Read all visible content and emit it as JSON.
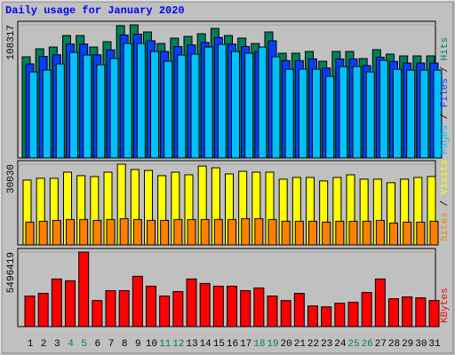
{
  "chart_data": {
    "type": "bar",
    "title": "Daily usage for January 2020",
    "categories": [
      "1",
      "2",
      "3",
      "4",
      "5",
      "6",
      "7",
      "8",
      "9",
      "10",
      "11",
      "12",
      "13",
      "14",
      "15",
      "16",
      "17",
      "18",
      "19",
      "20",
      "21",
      "22",
      "23",
      "24",
      "25",
      "26",
      "27",
      "28",
      "29",
      "30",
      "31"
    ],
    "category_colors": [
      "#000000",
      "#000000",
      "#000000",
      "#00805c",
      "#00805c",
      "#000000",
      "#000000",
      "#000000",
      "#000000",
      "#000000",
      "#00805c",
      "#00805c",
      "#000000",
      "#000000",
      "#000000",
      "#000000",
      "#000000",
      "#00805c",
      "#00805c",
      "#000000",
      "#000000",
      "#000000",
      "#000000",
      "#000000",
      "#00805c",
      "#00805c",
      "#000000",
      "#000000",
      "#000000",
      "#000000",
      "#000000"
    ],
    "legend_separator": " / ",
    "panels": [
      {
        "ylim": [
          0,
          108317
        ],
        "yticks": [
          108317
        ],
        "series": [
          {
            "name": "Hits",
            "color": "#00805c",
            "values": [
              82320,
              88820,
              90265,
              99650,
              99650,
              90265,
              94600,
              107600,
              108317,
              102540,
              93150,
              97480,
              98930,
              101095,
              105430,
              99650,
              97480,
              93150,
              102540,
              85210,
              85210,
              86650,
              78710,
              86650,
              86650,
              80875,
              88100,
              84490,
              83040,
              83040,
              83040
            ]
          },
          {
            "name": "Files",
            "color": "#0040ff",
            "values": [
              76558,
              82603,
              83946,
              92675,
              92675,
              83946,
              87978,
              100068,
              100735,
              95362,
              86630,
              90656,
              92005,
              94018,
              98050,
              92675,
              90656,
              86630,
              95362,
              79245,
              79245,
              80585,
              73200,
              80585,
              80585,
              75214,
              81933,
              78576,
              77227,
              77227,
              77227
            ]
          },
          {
            "name": "Pages",
            "color": "#00c0ff",
            "values": [
              70040,
              71490,
              76540,
              85930,
              83760,
              75820,
              80875,
              93150,
              93150,
              86650,
              78710,
              83760,
              84490,
              90265,
              92430,
              86650,
              85210,
              90265,
              82320,
              72210,
              72210,
              72210,
              66430,
              74380,
              74380,
              70040,
              79430,
              72210,
              71490,
              71490,
              71490
            ]
          }
        ]
      },
      {
        "ylim": [
          0,
          30030
        ],
        "yticks": [
          30030
        ],
        "series": [
          {
            "name": "Visits",
            "color": "#ffff00",
            "values": [
              24124,
              24776,
              24776,
              27058,
              25754,
              25428,
              27058,
              30030,
              28036,
              27710,
              25754,
              27058,
              26080,
              29340,
              28688,
              26406,
              27384,
              27058,
              27058,
              24450,
              25102,
              25102,
              23798,
              25102,
              26080,
              24450,
              24450,
              23146,
              24450,
              25102,
              25428
            ]
          },
          {
            "name": "Sites",
            "color": "#ff8000",
            "values": [
              8476,
              8802,
              9128,
              9454,
              9454,
              9128,
              9454,
              9780,
              9454,
              9128,
              9128,
              9454,
              9454,
              9454,
              9454,
              9454,
              9780,
              9780,
              9454,
              8802,
              8802,
              8802,
              8476,
              8802,
              8802,
              8802,
              9128,
              8150,
              8476,
              8476,
              8802
            ]
          }
        ]
      },
      {
        "ylim": [
          0,
          5496419
        ],
        "yticks": [
          5496419
        ],
        "series": [
          {
            "name": "KBytes",
            "color": "#ff0000",
            "values": [
              2251548,
              2450214,
              3509766,
              3377322,
              5496419,
              1920438,
              2648880,
              2648880,
              3708432,
              2979990,
              2251548,
              2582658,
              3509766,
              3178656,
              2979990,
              2979990,
              2648880,
              2847546,
              2251548,
              1920438,
              2450214,
              1523106,
              1456884,
              1721772,
              1788000,
              2516436,
              3509766,
              2052882,
              2185326,
              2119104,
              1920438
            ]
          }
        ]
      }
    ]
  }
}
